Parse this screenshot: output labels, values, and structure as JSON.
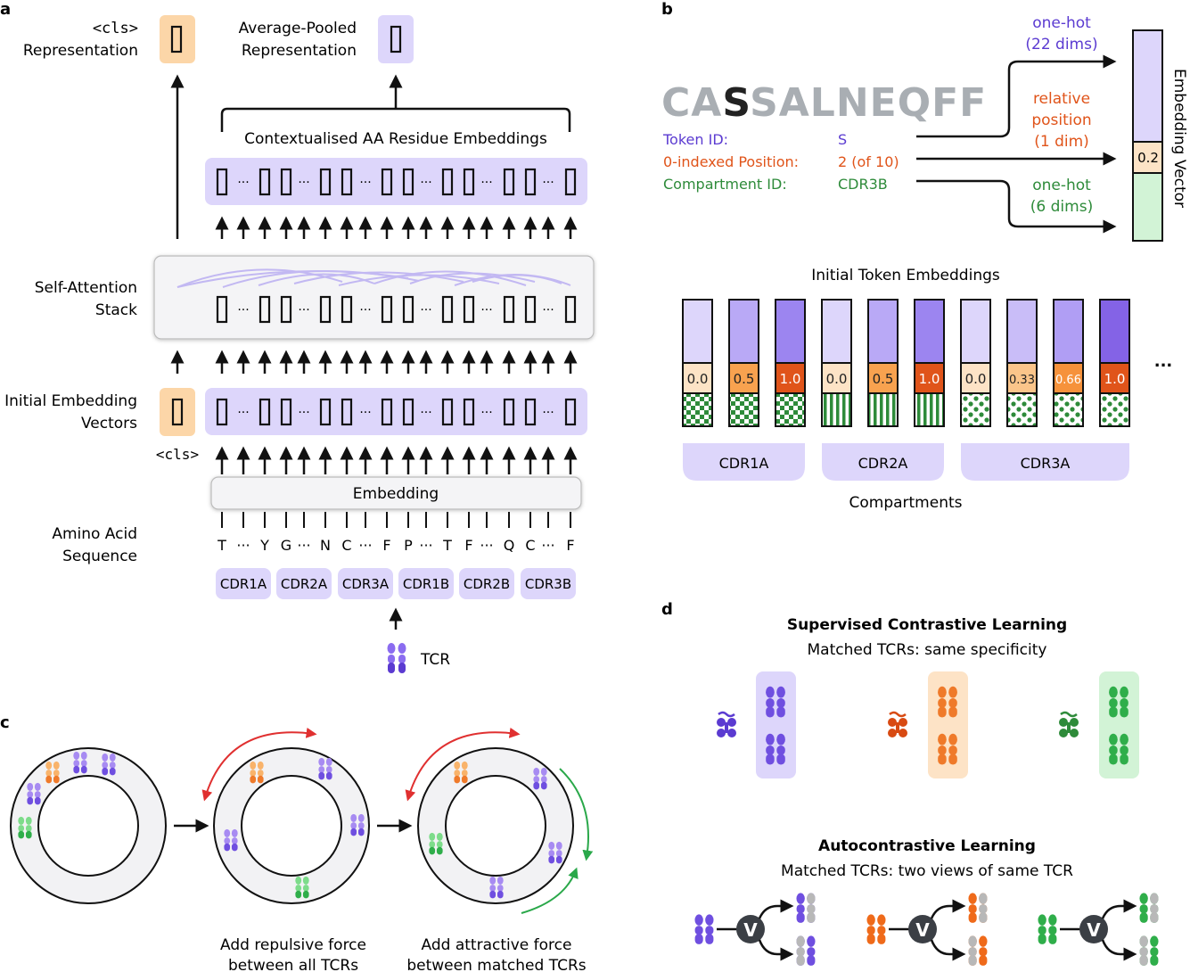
{
  "panel_a": {
    "letter": "a",
    "cls_repr": [
      "<cls>",
      "Representation"
    ],
    "avg_repr": [
      "Average-Pooled",
      "Representation"
    ],
    "contextualised": "Contextualised AA Residue Embeddings",
    "self_attention": [
      "Self-Attention",
      "Stack"
    ],
    "initial_vectors": [
      "Initial Embedding",
      "Vectors"
    ],
    "cls_token": "<cls>",
    "embedding": "Embedding",
    "aa_label": [
      "Amino Acid",
      "Sequence"
    ],
    "sequence": [
      "T",
      "···",
      "Y",
      "G",
      "···",
      "N",
      "C",
      "···",
      "F",
      "P",
      "···",
      "T",
      "F",
      "···",
      "Q",
      "C",
      "···",
      "F"
    ],
    "compartments": [
      "CDR1A",
      "CDR2A",
      "CDR3A",
      "CDR1B",
      "CDR2B",
      "CDR3B"
    ],
    "tcr": "TCR"
  },
  "panel_b": {
    "letter": "b",
    "sequence_pre": "CA",
    "sequence_hl": "S",
    "sequence_post": "SALNEQFF",
    "token_id_label": "Token ID:",
    "token_id_value": "S",
    "position_label": "0-indexed Position:",
    "position_value": "2 (of 10)",
    "compartment_label": "Compartment ID:",
    "compartment_value": "CDR3B",
    "onehot22": [
      "one-hot",
      "(22 dims)"
    ],
    "relpos": [
      "relative",
      "position",
      "(1 dim)"
    ],
    "onehot6": [
      "one-hot",
      "(6 dims)"
    ],
    "embedding_vector": "Embedding Vector",
    "vector_value": "0.2",
    "initial_token": "Initial Token Embeddings",
    "position_values": [
      "0.0",
      "0.5",
      "1.0",
      "0.0",
      "0.5",
      "1.0",
      "0.0",
      "0.33",
      "0.66",
      "1.0"
    ],
    "ellipsis": "...",
    "groups": [
      "CDR1A",
      "CDR2A",
      "CDR3A"
    ],
    "compartments_label": "Compartments",
    "colors": {
      "purple": "#5b3bd1",
      "orange": "#e0541a",
      "green": "#2e8b3a"
    }
  },
  "panel_c": {
    "letter": "c",
    "caption1": [
      "Add repulsive force",
      "between all TCRs"
    ],
    "caption2": [
      "Add attractive force",
      "between matched TCRs"
    ]
  },
  "panel_d": {
    "letter": "d",
    "title1": "Supervised Contrastive Learning",
    "sub1": "Matched TCRs: same specificity",
    "title2": "Autocontrastive Learning",
    "sub2": "Matched TCRs: two views of same TCR",
    "v": "V"
  }
}
